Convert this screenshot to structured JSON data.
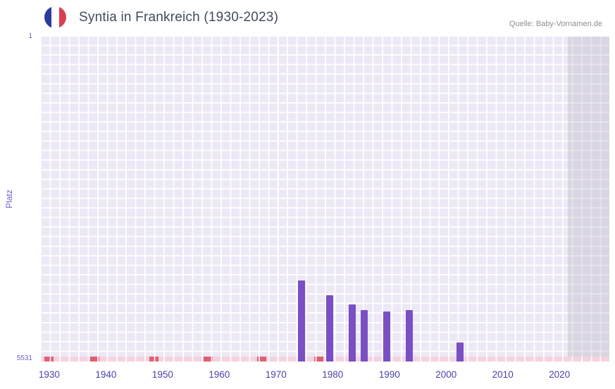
{
  "header": {
    "title": "Syntia in Frankreich (1930-2023)"
  },
  "source": {
    "label": "Quelle: Baby-Vornamen.de"
  },
  "chart_data": {
    "type": "bar",
    "title": "Syntia in Frankreich (1930-2023)",
    "xlabel": "",
    "ylabel": "Platz",
    "y_axis": {
      "min": 1,
      "max": 5531,
      "inverted": true,
      "top_tick": "1",
      "bottom_tick": "5531"
    },
    "x_axis": {
      "min": 1928.4,
      "max": 2028.8,
      "ticks": [
        1930,
        1940,
        1950,
        1960,
        1970,
        1980,
        1990,
        2000,
        2010,
        2020
      ]
    },
    "bars": [
      {
        "year": 1974,
        "rank": 4150
      },
      {
        "year": 1979,
        "rank": 4400
      },
      {
        "year": 1983,
        "rank": 4555
      },
      {
        "year": 1985,
        "rank": 4660
      },
      {
        "year": 1989,
        "rank": 4685
      },
      {
        "year": 1993,
        "rank": 4660
      },
      {
        "year": 2002,
        "rank": 5205
      }
    ],
    "baseline": {
      "color": "#f5d2df",
      "mark_color": "#e05e72",
      "mark_halfwidth": 0.8,
      "marks": [
        {
          "year": 1930
        },
        {
          "year": 1938
        },
        {
          "year": 1948.5
        },
        {
          "year": 1958
        },
        {
          "year": 1967.5
        },
        {
          "year": 1977.5
        }
      ]
    },
    "highlight_band": {
      "from": 2021.5,
      "to": 2028.8
    },
    "colors": {
      "bar": "#7a4fc3",
      "plot_bg": "#ece8f5",
      "grid": "#ffffff",
      "axis_text": "#4843ab",
      "y_text": "#6e60ca"
    },
    "grid": true,
    "legend": "none"
  }
}
